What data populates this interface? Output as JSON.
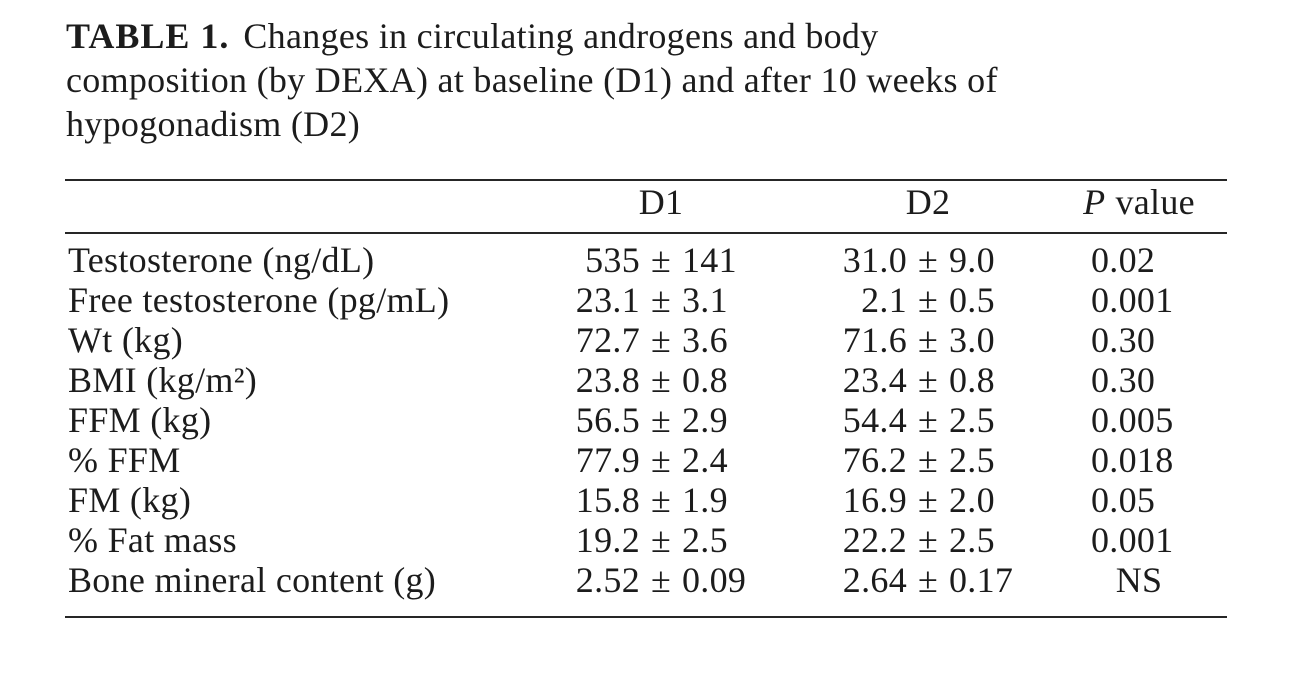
{
  "caption": {
    "bold_label": "TABLE 1.",
    "line1": "Changes in circulating androgens and body",
    "line2": "composition (by DEXA) at baseline (D1) and after 10 weeks of",
    "line3": "hypogonadism (D2)"
  },
  "table": {
    "plus_minus": "±",
    "headers": {
      "d1": "D1",
      "d2": "D2",
      "p_italic": "P",
      "p_rest": "value"
    },
    "rows": [
      {
        "label": "Testosterone (ng/dL)",
        "d1_mean": "535",
        "d1_sd": "141",
        "d2_mean": "31.0",
        "d2_sd": "9.0",
        "p": "0.02"
      },
      {
        "label": "Free testosterone (pg/mL)",
        "d1_mean": "23.1",
        "d1_sd": "3.1",
        "d2_mean": "2.1",
        "d2_sd": "0.5",
        "p": "0.001"
      },
      {
        "label": "Wt (kg)",
        "d1_mean": "72.7",
        "d1_sd": "3.6",
        "d2_mean": "71.6",
        "d2_sd": "3.0",
        "p": "0.30"
      },
      {
        "label": "BMI (kg/m²)",
        "d1_mean": "23.8",
        "d1_sd": "0.8",
        "d2_mean": "23.4",
        "d2_sd": "0.8",
        "p": "0.30"
      },
      {
        "label": "FFM (kg)",
        "d1_mean": "56.5",
        "d1_sd": "2.9",
        "d2_mean": "54.4",
        "d2_sd": "2.5",
        "p": "0.005"
      },
      {
        "label": "% FFM",
        "d1_mean": "77.9",
        "d1_sd": "2.4",
        "d2_mean": "76.2",
        "d2_sd": "2.5",
        "p": "0.018"
      },
      {
        "label": "FM (kg)",
        "d1_mean": "15.8",
        "d1_sd": "1.9",
        "d2_mean": "16.9",
        "d2_sd": "2.0",
        "p": "0.05"
      },
      {
        "label": "% Fat mass",
        "d1_mean": "19.2",
        "d1_sd": "2.5",
        "d2_mean": "22.2",
        "d2_sd": "2.5",
        "p": "0.001"
      },
      {
        "label": "Bone mineral content (g)",
        "d1_mean": "2.52",
        "d1_sd": "0.09",
        "d2_mean": "2.64",
        "d2_sd": "0.17",
        "p": "NS"
      }
    ]
  },
  "colors": {
    "background": "#ffffff",
    "text": "#1c1c1c",
    "rule": "#262626"
  }
}
